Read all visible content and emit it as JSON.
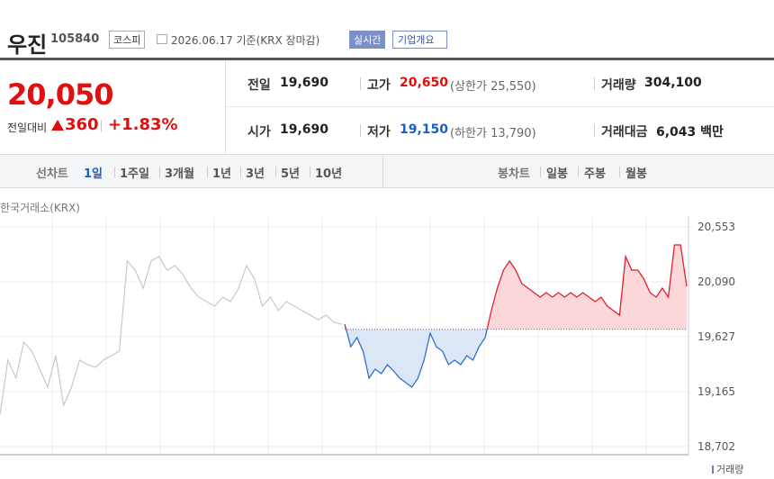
{
  "header": {
    "name": "우진",
    "code": "105840",
    "market": "코스피",
    "date": "2026.06.17 기준(KRX 장마감)",
    "realtime": "실시간",
    "overview": "기업개요"
  },
  "price": {
    "current": "20,050",
    "change_label": "전일대비",
    "change": "360",
    "rate": "+1.83%"
  },
  "stats": {
    "prev_label": "전일",
    "prev": "19,690",
    "open_label": "시가",
    "open": "19,690",
    "high_label": "고가",
    "high": "20,650",
    "upper_limit": "(상한가 25,550)",
    "low_label": "저가",
    "low": "19,150",
    "lower_limit": "(하한가 13,790)",
    "volume_label": "거래량",
    "volume": "304,100",
    "amount_label": "거래대금",
    "amount": "6,043 백만"
  },
  "tabs": {
    "line_label": "선차트",
    "line_items": [
      "1일",
      "1주일",
      "3개월",
      "1년",
      "3년",
      "5년",
      "10년"
    ],
    "candle_label": "봉차트",
    "candle_items": [
      "일봉",
      "주봉",
      "월봉"
    ]
  },
  "chart": {
    "source": "한국거래소(KRX)",
    "volume_legend": "거래량",
    "base": 19690,
    "ylim": [
      18633,
      20644
    ],
    "yticks": [
      {
        "value": 20553,
        "label": "20,553"
      },
      {
        "value": 20090,
        "label": "20,090"
      },
      {
        "value": 19627,
        "label": "19,627"
      },
      {
        "value": 19165,
        "label": "19,165"
      },
      {
        "value": 18702,
        "label": "18,702"
      }
    ],
    "previous": [
      18974,
      19430,
      19278,
      19582,
      19506,
      19354,
      19202,
      19468,
      19050,
      19202,
      19430,
      19392,
      19369,
      19430,
      19468,
      19506,
      20265,
      20189,
      20037,
      20265,
      20303,
      20189,
      20227,
      20151,
      20037,
      19961,
      19923,
      19885,
      19961,
      19923,
      20037,
      20227,
      20113,
      19885,
      19961,
      19847,
      19923,
      19885,
      19847,
      19809,
      19771,
      19809,
      19748,
      19733
    ],
    "today": [
      19733,
      19543,
      19620,
      19506,
      19278,
      19354,
      19316,
      19392,
      19339,
      19278,
      19240,
      19202,
      19278,
      19430,
      19657,
      19543,
      19506,
      19392,
      19430,
      19392,
      19468,
      19430,
      19543,
      19620,
      19847,
      20037,
      20189,
      20265,
      20189,
      20075,
      20037,
      19999,
      19961,
      19999,
      19961,
      19999,
      19961,
      19999,
      19961,
      19999,
      19961,
      19923,
      19961,
      19885,
      19847,
      19809,
      20303,
      20189,
      20189,
      20113,
      19999,
      19961,
      20037,
      19961,
      20401,
      20401,
      20052
    ]
  }
}
